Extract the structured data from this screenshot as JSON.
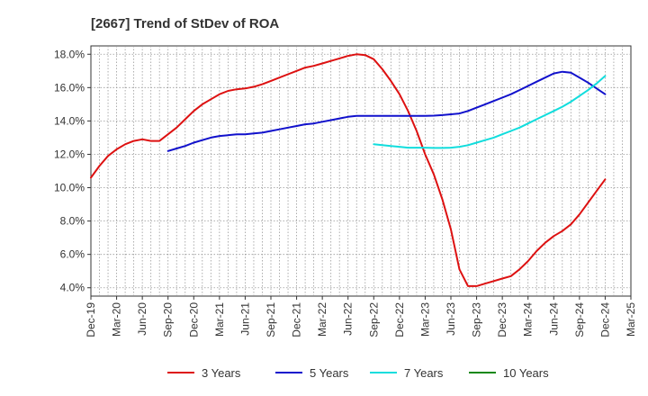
{
  "chart_data": {
    "type": "line",
    "title": "[2667]  Trend of StDev of ROA",
    "xlabel": "",
    "ylabel": "",
    "x_ticks": [
      "Dec-19",
      "Mar-20",
      "Jun-20",
      "Sep-20",
      "Dec-20",
      "Mar-21",
      "Jun-21",
      "Sep-21",
      "Dec-21",
      "Mar-22",
      "Jun-22",
      "Sep-22",
      "Dec-22",
      "Mar-23",
      "Jun-23",
      "Sep-23",
      "Dec-23",
      "Mar-24",
      "Jun-24",
      "Sep-24",
      "Dec-24",
      "Mar-25"
    ],
    "y_ticks": [
      "4.0%",
      "6.0%",
      "8.0%",
      "10.0%",
      "12.0%",
      "14.0%",
      "16.0%",
      "18.0%"
    ],
    "ylim": [
      3.5,
      18.5
    ],
    "grid": true,
    "legend_position": "bottom",
    "series": [
      {
        "name": "3 Years",
        "color": "#dd1111",
        "x": [
          "2019-12",
          "2020-01",
          "2020-02",
          "2020-03",
          "2020-04",
          "2020-05",
          "2020-06",
          "2020-07",
          "2020-08",
          "2020-09",
          "2020-10",
          "2020-11",
          "2020-12",
          "2021-01",
          "2021-02",
          "2021-03",
          "2021-04",
          "2021-05",
          "2021-06",
          "2021-07",
          "2021-08",
          "2021-09",
          "2021-10",
          "2021-11",
          "2021-12",
          "2022-01",
          "2022-02",
          "2022-03",
          "2022-04",
          "2022-05",
          "2022-06",
          "2022-07",
          "2022-08",
          "2022-09",
          "2022-10",
          "2022-11",
          "2022-12",
          "2023-01",
          "2023-02",
          "2023-03",
          "2023-04",
          "2023-05",
          "2023-06",
          "2023-07",
          "2023-08",
          "2023-09",
          "2023-10",
          "2023-11",
          "2023-12",
          "2024-01",
          "2024-02",
          "2024-03",
          "2024-04",
          "2024-05",
          "2024-06",
          "2024-07",
          "2024-08",
          "2024-09",
          "2024-10",
          "2024-11",
          "2024-12"
        ],
        "values": [
          10.6,
          11.3,
          11.9,
          12.3,
          12.6,
          12.8,
          12.9,
          12.8,
          12.8,
          13.2,
          13.6,
          14.1,
          14.6,
          15.0,
          15.3,
          15.6,
          15.8,
          15.9,
          15.95,
          16.05,
          16.2,
          16.4,
          16.6,
          16.8,
          17.0,
          17.2,
          17.3,
          17.45,
          17.6,
          17.75,
          17.9,
          18.0,
          17.95,
          17.7,
          17.1,
          16.4,
          15.6,
          14.6,
          13.4,
          12.0,
          10.8,
          9.3,
          7.5,
          5.1,
          4.1,
          4.1,
          4.25,
          4.4,
          4.55,
          4.7,
          5.1,
          5.6,
          6.2,
          6.7,
          7.1,
          7.4,
          7.8,
          8.4,
          9.1,
          9.8,
          10.5
        ]
      },
      {
        "name": "5 Years",
        "color": "#1111cc",
        "x": [
          "2020-09",
          "2020-10",
          "2020-11",
          "2020-12",
          "2021-01",
          "2021-02",
          "2021-03",
          "2021-04",
          "2021-05",
          "2021-06",
          "2021-07",
          "2021-08",
          "2021-09",
          "2021-10",
          "2021-11",
          "2021-12",
          "2022-01",
          "2022-02",
          "2022-03",
          "2022-04",
          "2022-05",
          "2022-06",
          "2022-07",
          "2022-08",
          "2022-09",
          "2022-10",
          "2022-11",
          "2022-12",
          "2023-01",
          "2023-02",
          "2023-03",
          "2023-04",
          "2023-05",
          "2023-06",
          "2023-07",
          "2023-08",
          "2023-09",
          "2023-10",
          "2023-11",
          "2023-12",
          "2024-01",
          "2024-02",
          "2024-03",
          "2024-04",
          "2024-05",
          "2024-06",
          "2024-07",
          "2024-08",
          "2024-09",
          "2024-10",
          "2024-11",
          "2024-12"
        ],
        "values": [
          12.2,
          12.35,
          12.5,
          12.7,
          12.85,
          13.0,
          13.1,
          13.15,
          13.2,
          13.2,
          13.25,
          13.3,
          13.4,
          13.5,
          13.6,
          13.7,
          13.8,
          13.85,
          13.95,
          14.05,
          14.15,
          14.25,
          14.3,
          14.3,
          14.3,
          14.3,
          14.3,
          14.3,
          14.3,
          14.3,
          14.3,
          14.32,
          14.35,
          14.4,
          14.45,
          14.6,
          14.8,
          15.0,
          15.2,
          15.4,
          15.6,
          15.85,
          16.1,
          16.35,
          16.6,
          16.85,
          16.95,
          16.9,
          16.6,
          16.3,
          15.95,
          15.6
        ]
      },
      {
        "name": "7 Years",
        "color": "#11dddd",
        "x": [
          "2022-09",
          "2022-10",
          "2022-11",
          "2022-12",
          "2023-01",
          "2023-02",
          "2023-03",
          "2023-04",
          "2023-05",
          "2023-06",
          "2023-07",
          "2023-08",
          "2023-09",
          "2023-10",
          "2023-11",
          "2023-12",
          "2024-01",
          "2024-02",
          "2024-03",
          "2024-04",
          "2024-05",
          "2024-06",
          "2024-07",
          "2024-08",
          "2024-09",
          "2024-10",
          "2024-11",
          "2024-12"
        ],
        "values": [
          12.6,
          12.55,
          12.5,
          12.45,
          12.4,
          12.4,
          12.4,
          12.38,
          12.38,
          12.4,
          12.45,
          12.55,
          12.7,
          12.85,
          13.0,
          13.2,
          13.4,
          13.6,
          13.85,
          14.1,
          14.35,
          14.6,
          14.85,
          15.15,
          15.5,
          15.85,
          16.25,
          16.7
        ]
      },
      {
        "name": "10 Years",
        "color": "#118811",
        "x": [],
        "values": []
      }
    ]
  }
}
